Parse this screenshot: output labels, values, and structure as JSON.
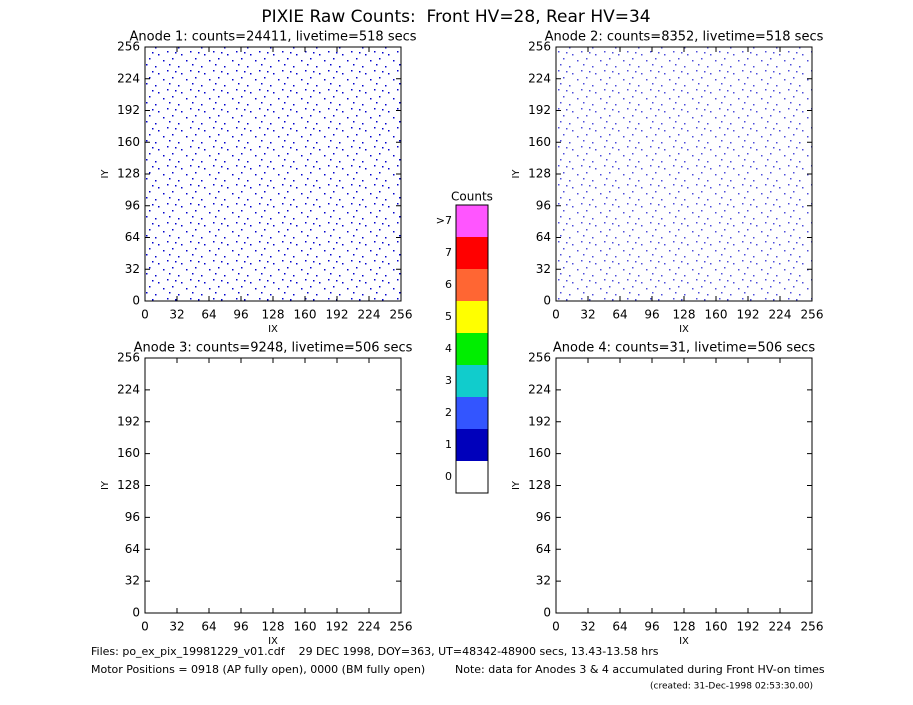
{
  "title": "PIXIE Raw Counts:  Front HV=28, Rear HV=34",
  "panels": [
    {
      "title": "Anode 1: counts=24411, livetime=518 secs",
      "xlabel": "IX",
      "ylabel": "IY",
      "xlim": [
        0,
        256
      ],
      "ylim": [
        0,
        256
      ],
      "xticks": [
        0,
        32,
        64,
        96,
        128,
        160,
        192,
        224,
        256
      ],
      "yticks": [
        0,
        32,
        64,
        96,
        128,
        160,
        192,
        224,
        256
      ]
    },
    {
      "title": "Anode 2: counts=8352, livetime=518 secs",
      "xlabel": "IX",
      "ylabel": "IY",
      "xlim": [
        0,
        256
      ],
      "ylim": [
        0,
        256
      ],
      "xticks": [
        0,
        32,
        64,
        96,
        128,
        160,
        192,
        224,
        256
      ],
      "yticks": [
        0,
        32,
        64,
        96,
        128,
        160,
        192,
        224,
        256
      ]
    },
    {
      "title": "Anode 3: counts=9248, livetime=506 secs",
      "xlabel": "IX",
      "ylabel": "IY",
      "xlim": [
        0,
        256
      ],
      "ylim": [
        0,
        256
      ],
      "xticks": [
        0,
        32,
        64,
        96,
        128,
        160,
        192,
        224,
        256
      ],
      "yticks": [
        0,
        32,
        64,
        96,
        128,
        160,
        192,
        224,
        256
      ]
    },
    {
      "title": "Anode 4: counts=31, livetime=506 secs",
      "xlabel": "IX",
      "ylabel": "IY",
      "xlim": [
        0,
        256
      ],
      "ylim": [
        0,
        256
      ],
      "xticks": [
        0,
        32,
        64,
        96,
        128,
        160,
        192,
        224,
        256
      ],
      "yticks": [
        0,
        32,
        64,
        96,
        128,
        160,
        192,
        224,
        256
      ]
    }
  ],
  "colorbar": {
    "title": "Counts",
    "levels": [
      {
        "label": "0",
        "color": "#ffffff"
      },
      {
        "label": "1",
        "color": "#0000bb"
      },
      {
        "label": "2",
        "color": "#3355ff"
      },
      {
        "label": "3",
        "color": "#11cccc"
      },
      {
        "label": "4",
        "color": "#00ee00"
      },
      {
        "label": "5",
        "color": "#ffff00"
      },
      {
        "label": "6",
        "color": "#ff6633"
      },
      {
        "label": "7",
        "color": "#ff0000"
      },
      {
        "label": ">7",
        "color": "#ff55ff"
      }
    ]
  },
  "footer": {
    "files": "Files: po_ex_pix_19981229_v01.cdf    29 DEC 1998, DOY=363, UT=48342-48900 secs, 13.43-13.58 hrs",
    "motor": "Motor Positions = 0918 (AP fully open), 0000 (BM fully open)",
    "note": "Note: data for Anodes 3 & 4 accumulated during Front HV-on times",
    "created": "(created: 31-Dec-1998 02:53:30.00)"
  }
}
